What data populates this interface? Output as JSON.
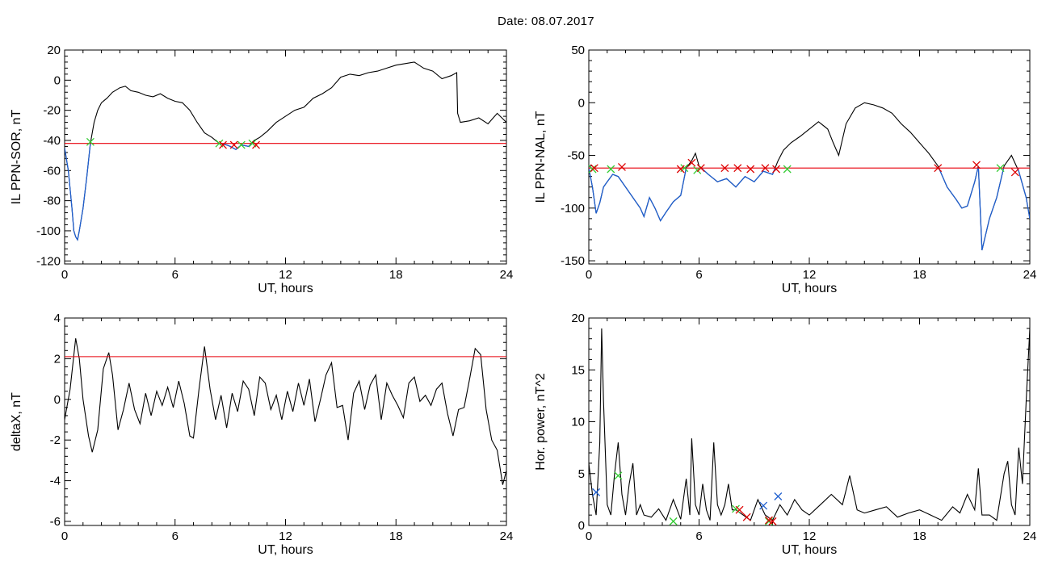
{
  "page": {
    "title": "Date:  08.07.2017"
  },
  "colors": {
    "reference_line": "#e8000b",
    "low_segment": "#1f5fcf",
    "trace": "#000000",
    "marker_green": "#33cc33",
    "marker_red": "#dd0000",
    "marker_blue": "#1f5fcf"
  },
  "chart_data": [
    {
      "id": "sor",
      "type": "line",
      "xlabel": "UT, hours",
      "ylabel": "IL PPN-SOR, nT",
      "xlim": [
        0,
        24
      ],
      "ylim": [
        -122,
        20
      ],
      "xticks": [
        0,
        6,
        12,
        18,
        24
      ],
      "yticks": [
        -120,
        -100,
        -80,
        -60,
        -40,
        -20,
        0,
        20
      ],
      "reference_line": -42,
      "below_reference_color": "blue",
      "series": [
        {
          "x": [
            0,
            0.2,
            0.4,
            0.5,
            0.6,
            0.7,
            0.8,
            1.0,
            1.2,
            1.4,
            1.6,
            1.8,
            2.0,
            2.3,
            2.6,
            3.0,
            3.3,
            3.6,
            4.0,
            4.4,
            4.8,
            5.2,
            5.6,
            6.0,
            6.4,
            6.8,
            7.2,
            7.6,
            8.0,
            8.4,
            8.8,
            9.0,
            9.3,
            9.6,
            10.0,
            10.3,
            10.6,
            11.0,
            11.5,
            12.0,
            12.5,
            13.0,
            13.5,
            14.0,
            14.5,
            15.0,
            15.5,
            16.0,
            16.5,
            17.0,
            17.5,
            18.0,
            18.5,
            19.0,
            19.5,
            20.0,
            20.5,
            21.0,
            21.3,
            21.35,
            21.5,
            22.0,
            22.5,
            23.0,
            23.5,
            24.0
          ],
          "values": [
            -45,
            -60,
            -85,
            -100,
            -104,
            -106,
            -100,
            -85,
            -65,
            -42,
            -28,
            -20,
            -15,
            -12,
            -8,
            -5,
            -4,
            -7,
            -8,
            -10,
            -11,
            -9,
            -12,
            -14,
            -15,
            -20,
            -28,
            -35,
            -38,
            -42,
            -43,
            -44,
            -46,
            -43,
            -44,
            -40,
            -38,
            -34,
            -28,
            -24,
            -20,
            -18,
            -12,
            -9,
            -5,
            2,
            4,
            3,
            5,
            6,
            8,
            10,
            11,
            12,
            8,
            6,
            1,
            3,
            5,
            -22,
            -28,
            -27,
            -25,
            -29,
            -22,
            -28
          ]
        }
      ],
      "markers_green": [
        [
          1.4,
          -41
        ],
        [
          8.4,
          -42
        ],
        [
          9.6,
          -43
        ],
        [
          10.2,
          -42
        ]
      ],
      "markers_red": [
        [
          8.6,
          -43
        ],
        [
          9.2,
          -43
        ],
        [
          10.4,
          -43
        ]
      ]
    },
    {
      "id": "nal",
      "type": "line",
      "xlabel": "UT, hours",
      "ylabel": "IL PPN-NAL, nT",
      "xlim": [
        0,
        24
      ],
      "ylim": [
        -153,
        50
      ],
      "xticks": [
        0,
        6,
        12,
        18,
        24
      ],
      "yticks": [
        -150,
        -100,
        -50,
        0,
        50
      ],
      "reference_line": -62,
      "below_reference_color": "blue",
      "series": [
        {
          "x": [
            0,
            0.2,
            0.4,
            0.6,
            0.8,
            1.0,
            1.3,
            1.6,
            2.0,
            2.4,
            2.8,
            3.0,
            3.3,
            3.6,
            3.9,
            4.2,
            4.6,
            5.0,
            5.3,
            5.6,
            5.8,
            6.0,
            6.5,
            7.0,
            7.5,
            8.0,
            8.5,
            9.0,
            9.5,
            10.0,
            10.3,
            10.6,
            11.0,
            11.5,
            12.0,
            12.5,
            13.0,
            13.3,
            13.6,
            14.0,
            14.5,
            15.0,
            15.5,
            16.0,
            16.5,
            17.0,
            17.5,
            18.0,
            18.5,
            19.0,
            19.5,
            20.0,
            20.3,
            20.6,
            21.0,
            21.2,
            21.4,
            21.8,
            22.2,
            22.6,
            23.0,
            23.4,
            23.8,
            24.0
          ],
          "values": [
            -62,
            -80,
            -105,
            -95,
            -80,
            -75,
            -68,
            -70,
            -80,
            -90,
            -100,
            -108,
            -90,
            -100,
            -112,
            -104,
            -94,
            -88,
            -62,
            -55,
            -48,
            -60,
            -68,
            -75,
            -72,
            -80,
            -70,
            -75,
            -65,
            -68,
            -55,
            -45,
            -38,
            -32,
            -25,
            -18,
            -25,
            -38,
            -50,
            -20,
            -5,
            0,
            -2,
            -5,
            -10,
            -20,
            -28,
            -38,
            -48,
            -60,
            -80,
            -92,
            -100,
            -98,
            -75,
            -60,
            -140,
            -110,
            -90,
            -60,
            -50,
            -65,
            -90,
            -110
          ]
        }
      ],
      "markers_green": [
        [
          0.2,
          -63
        ],
        [
          1.2,
          -63
        ],
        [
          5.2,
          -62
        ],
        [
          5.9,
          -64
        ],
        [
          10.8,
          -63
        ],
        [
          22.4,
          -62
        ]
      ],
      "markers_red": [
        [
          0.3,
          -62
        ],
        [
          1.8,
          -61
        ],
        [
          5.0,
          -63
        ],
        [
          5.6,
          -57
        ],
        [
          6.1,
          -62
        ],
        [
          7.4,
          -62
        ],
        [
          8.1,
          -62
        ],
        [
          8.8,
          -63
        ],
        [
          9.6,
          -62
        ],
        [
          10.2,
          -63
        ],
        [
          19.0,
          -62
        ],
        [
          21.1,
          -59
        ],
        [
          23.2,
          -66
        ]
      ]
    },
    {
      "id": "deltax",
      "type": "line",
      "xlabel": "UT, hours",
      "ylabel": "deltaX, nT",
      "xlim": [
        0,
        24
      ],
      "ylim": [
        -6.2,
        4
      ],
      "xticks": [
        0,
        6,
        12,
        18,
        24
      ],
      "yticks": [
        -6,
        -4,
        -2,
        0,
        2,
        4
      ],
      "reference_line": 2.1,
      "series": [
        {
          "x": [
            0,
            0.3,
            0.6,
            0.8,
            1.0,
            1.3,
            1.5,
            1.8,
            2.1,
            2.4,
            2.6,
            2.9,
            3.2,
            3.5,
            3.8,
            4.1,
            4.4,
            4.7,
            5.0,
            5.3,
            5.6,
            5.9,
            6.2,
            6.5,
            6.8,
            7.0,
            7.3,
            7.6,
            7.9,
            8.2,
            8.5,
            8.8,
            9.1,
            9.4,
            9.7,
            10.0,
            10.3,
            10.6,
            10.9,
            11.2,
            11.5,
            11.8,
            12.1,
            12.4,
            12.7,
            13.0,
            13.3,
            13.6,
            13.9,
            14.2,
            14.5,
            14.8,
            15.1,
            15.4,
            15.7,
            16.0,
            16.3,
            16.6,
            16.9,
            17.2,
            17.5,
            17.8,
            18.1,
            18.4,
            18.7,
            19.0,
            19.3,
            19.6,
            19.9,
            20.2,
            20.5,
            20.8,
            21.1,
            21.4,
            21.7,
            22.0,
            22.3,
            22.6,
            22.9,
            23.2,
            23.5,
            23.8,
            24.0
          ],
          "values": [
            -1.0,
            0.5,
            3.0,
            2.0,
            0,
            -1.8,
            -2.6,
            -1.5,
            1.5,
            2.3,
            1.2,
            -1.5,
            -0.5,
            0.8,
            -0.5,
            -1.2,
            0.3,
            -0.8,
            0.4,
            -0.3,
            0.6,
            -0.4,
            0.9,
            -0.2,
            -1.8,
            -1.9,
            0.5,
            2.6,
            0.5,
            -1.0,
            0.2,
            -1.4,
            0.3,
            -0.6,
            0.9,
            0.5,
            -0.8,
            1.1,
            0.8,
            -0.5,
            0.2,
            -1.0,
            0.4,
            -0.6,
            0.8,
            -0.3,
            1.0,
            -1.1,
            0.0,
            1.2,
            1.8,
            -0.4,
            -0.3,
            -2.0,
            0.3,
            0.9,
            -0.5,
            0.7,
            1.2,
            -1.0,
            0.8,
            0.2,
            -0.3,
            -0.9,
            0.8,
            1.1,
            -0.1,
            0.2,
            -0.3,
            0.5,
            0.8,
            -0.7,
            -1.8,
            -0.5,
            -0.4,
            1.0,
            2.5,
            2.2,
            -0.5,
            -2.0,
            -2.5,
            -4.2,
            -3.5
          ]
        }
      ]
    },
    {
      "id": "power",
      "type": "line",
      "xlabel": "UT, hours",
      "ylabel": "Hor. power, nT^2",
      "xlim": [
        0,
        24
      ],
      "ylim": [
        0,
        20
      ],
      "xticks": [
        0,
        6,
        12,
        18,
        24
      ],
      "yticks": [
        0,
        5,
        10,
        15,
        20
      ],
      "series": [
        {
          "x": [
            0,
            0.2,
            0.4,
            0.6,
            0.7,
            0.8,
            1.0,
            1.2,
            1.4,
            1.6,
            1.8,
            2.0,
            2.2,
            2.4,
            2.6,
            2.8,
            3.0,
            3.4,
            3.8,
            4.2,
            4.6,
            5.0,
            5.3,
            5.5,
            5.6,
            5.8,
            6.0,
            6.2,
            6.4,
            6.6,
            6.8,
            7.0,
            7.2,
            7.4,
            7.6,
            7.8,
            8.0,
            8.4,
            8.8,
            9.2,
            9.6,
            10.0,
            10.4,
            10.8,
            11.2,
            11.6,
            12.0,
            12.6,
            13.2,
            13.8,
            14.2,
            14.6,
            15.0,
            15.6,
            16.2,
            16.8,
            17.4,
            18.0,
            18.6,
            19.2,
            19.8,
            20.2,
            20.6,
            21.0,
            21.2,
            21.4,
            21.8,
            22.2,
            22.6,
            22.8,
            23.0,
            23.2,
            23.4,
            23.6,
            23.8,
            24.0
          ],
          "values": [
            6,
            3,
            1,
            8,
            19,
            12,
            2,
            1,
            5,
            8,
            3,
            1,
            4,
            6,
            1,
            2,
            1,
            0.8,
            1.6,
            0.5,
            2.5,
            0.6,
            4.5,
            1,
            8.4,
            2,
            1,
            4,
            1.5,
            0.5,
            8,
            2,
            1,
            2,
            4,
            1.5,
            1.5,
            1,
            0.5,
            2.5,
            1,
            0.5,
            2,
            1,
            2.5,
            1.5,
            1,
            2,
            3,
            2,
            4.8,
            1.5,
            1.2,
            1.5,
            1.8,
            0.8,
            1.2,
            1.5,
            1.0,
            0.5,
            1.8,
            1.2,
            3,
            1.5,
            5.5,
            1,
            1,
            0.5,
            5,
            6.2,
            2,
            1,
            7.5,
            4,
            12,
            19
          ]
        }
      ],
      "markers_green": [
        [
          1.6,
          4.8
        ],
        [
          4.6,
          0.4
        ],
        [
          8.0,
          1.6
        ],
        [
          9.8,
          0.4
        ]
      ],
      "markers_red": [
        [
          8.2,
          1.5
        ],
        [
          8.6,
          0.8
        ],
        [
          9.8,
          0.5
        ],
        [
          10.0,
          0.4
        ]
      ],
      "markers_blue": [
        [
          0.4,
          3.2
        ],
        [
          9.5,
          1.9
        ],
        [
          10.3,
          2.8
        ]
      ]
    }
  ]
}
